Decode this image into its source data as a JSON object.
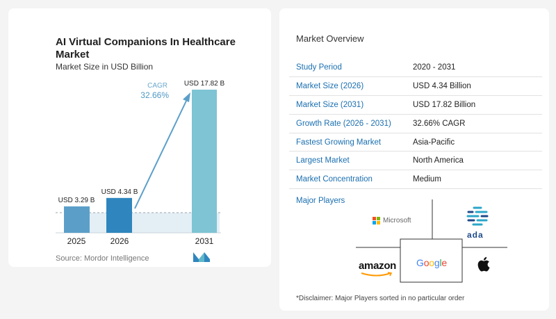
{
  "chart_data": {
    "type": "bar",
    "title": "AI Virtual Companions In Healthcare Market",
    "subtitle": "Market Size in USD Billion",
    "categories": [
      "2025",
      "2026",
      "2031"
    ],
    "values": [
      3.29,
      4.34,
      17.82
    ],
    "value_labels": [
      "USD 3.29 B",
      "USD 4.34 B",
      "USD 17.82 B"
    ],
    "cagr_label": "CAGR",
    "cagr_value": "32.66%",
    "ylim": [
      0,
      17.82
    ],
    "colors": {
      "bar_light": "#5b9fc9",
      "bar_dark": "#2f86be",
      "bar_forecast": "#7ec4d4",
      "arrow": "#5b9fc9"
    }
  },
  "source": "Source:  Mordor Intelligence",
  "overview": {
    "title": "Market Overview",
    "rows": [
      {
        "label": "Study Period",
        "value": "2020 - 2031"
      },
      {
        "label": "Market Size (2026)",
        "value": "USD 4.34 Billion"
      },
      {
        "label": "Market Size (2031)",
        "value": "USD 17.82 Billion"
      },
      {
        "label": "Growth Rate (2026 - 2031)",
        "value": "32.66% CAGR"
      },
      {
        "label": "Fastest Growing Market",
        "value": "Asia-Pacific"
      },
      {
        "label": "Largest Market",
        "value": "North America"
      },
      {
        "label": "Market Concentration",
        "value": "Medium"
      }
    ]
  },
  "players": {
    "label": "Major Players",
    "names": [
      "Microsoft",
      "ada",
      "amazon",
      "Google",
      "apple-logo-icon"
    ],
    "disclaimer": "*Disclaimer: Major Players sorted in no particular order"
  }
}
